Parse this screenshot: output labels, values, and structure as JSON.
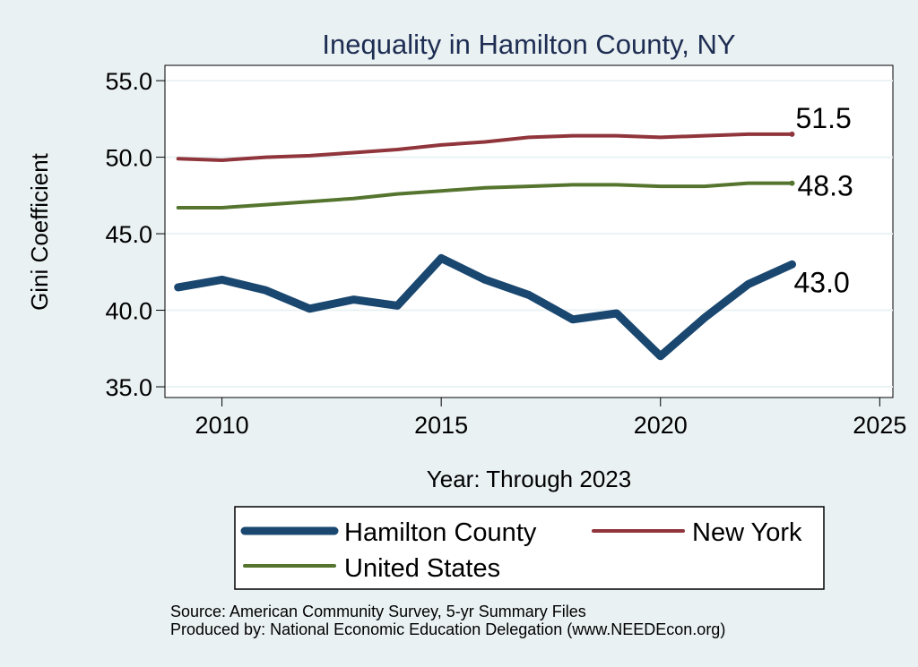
{
  "chart_data": {
    "type": "line",
    "title": "Inequality in Hamilton County, NY",
    "xlabel": "Year: Through 2023",
    "ylabel": "Gini Coefficient",
    "xlim": [
      2008.7,
      2025.3
    ],
    "ylim": [
      34.3,
      56.0
    ],
    "x_ticks": [
      2010,
      2015,
      2020,
      2025
    ],
    "y_ticks": [
      35,
      40,
      45,
      50,
      55
    ],
    "y_tick_labels": [
      "35.0",
      "40.0",
      "45.0",
      "50.0",
      "55.0"
    ],
    "grid": true,
    "legend_position": "bottom",
    "x": [
      2009,
      2010,
      2011,
      2012,
      2013,
      2014,
      2015,
      2016,
      2017,
      2018,
      2019,
      2020,
      2021,
      2022,
      2023
    ],
    "series": [
      {
        "name": "Hamilton County",
        "color": "#1a476f",
        "values": [
          41.5,
          42.0,
          41.3,
          40.1,
          40.7,
          40.3,
          43.4,
          42.0,
          41.0,
          39.4,
          39.8,
          37.0,
          39.5,
          41.7,
          43.0
        ],
        "end_label": "43.0"
      },
      {
        "name": "New York",
        "color": "#90353b",
        "values": [
          49.9,
          49.8,
          50.0,
          50.1,
          50.3,
          50.5,
          50.8,
          51.0,
          51.3,
          51.4,
          51.4,
          51.3,
          51.4,
          51.5,
          51.5
        ],
        "end_label": "51.5"
      },
      {
        "name": "United States",
        "color": "#55752f",
        "values": [
          46.7,
          46.7,
          46.9,
          47.1,
          47.3,
          47.6,
          47.8,
          48.0,
          48.1,
          48.2,
          48.2,
          48.1,
          48.1,
          48.3,
          48.3
        ],
        "end_label": "48.3"
      }
    ],
    "legend": [
      "Hamilton County",
      "New York",
      "United States"
    ],
    "notes": [
      "Source: American Community Survey, 5-yr Summary Files",
      "Produced by: National Economic Education Delegation (www.NEEDEcon.org)"
    ]
  }
}
